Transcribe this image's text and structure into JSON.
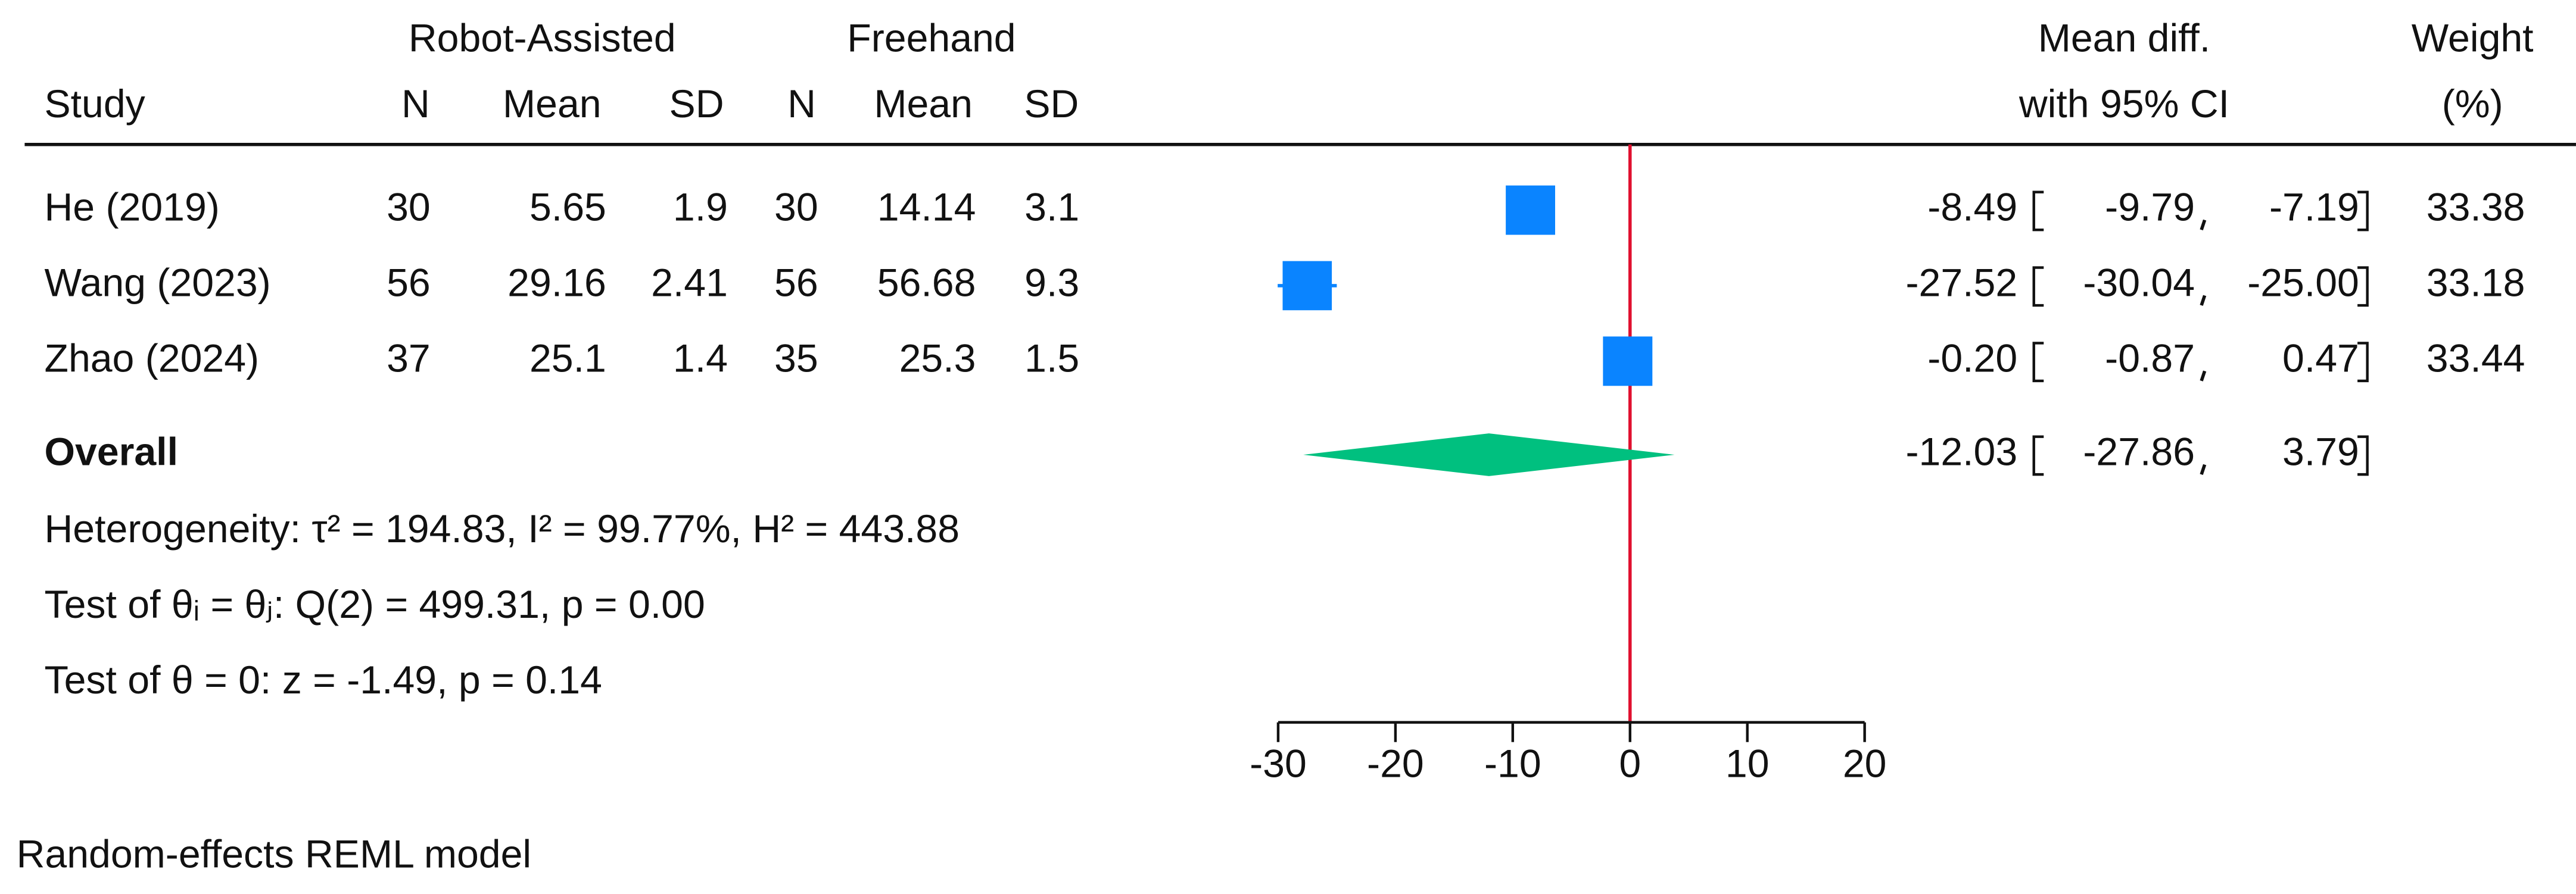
{
  "chart_data": {
    "type": "forest",
    "group_headers": [
      "Robot-Assisted",
      "Freehand"
    ],
    "columns": [
      "Study",
      "N",
      "Mean",
      "SD",
      "N",
      "Mean",
      "SD"
    ],
    "ci_header": [
      "Mean diff.",
      "with 95% CI"
    ],
    "weight_header": [
      "Weight",
      "(%)"
    ],
    "studies": [
      {
        "label": "He (2019)",
        "n1": 30,
        "mean1": 5.65,
        "sd1": 1.9,
        "n2": 30,
        "mean2": 14.14,
        "sd2": 3.1,
        "values": [
          -8.49,
          -9.79,
          -7.19
        ],
        "value_labels": [
          "-8.49",
          "-9.79",
          "-7.19"
        ],
        "weight": 33.38
      },
      {
        "label": "Wang (2023)",
        "n1": 56,
        "mean1": 29.16,
        "sd1": 2.41,
        "n2": 56,
        "mean2": 56.68,
        "sd2": 9.3,
        "values": [
          -27.52,
          -30.04,
          -25.0
        ],
        "value_labels": [
          "-27.52",
          "-30.04",
          "-25.00"
        ],
        "weight": 33.18
      },
      {
        "label": "Zhao (2024)",
        "n1": 37,
        "mean1": 25.1,
        "sd1": 1.4,
        "n2": 35,
        "mean2": 25.3,
        "sd2": 1.5,
        "values": [
          -0.2,
          -0.87,
          0.47
        ],
        "value_labels": [
          "-0.20",
          "-0.87",
          "0.47"
        ],
        "weight": 33.44
      }
    ],
    "overall": {
      "label": "Overall",
      "values": [
        -12.03,
        -27.86,
        3.79
      ],
      "value_labels": [
        "-12.03",
        "-27.86",
        "3.79"
      ]
    },
    "notes": [
      "Heterogeneity: τ² = 194.83, I² = 99.77%, H² = 443.88",
      "Test of θᵢ = θⱼ: Q(2) = 499.31, p = 0.00",
      "Test of θ = 0: z = -1.49, p = 0.14"
    ],
    "footnote": "Random-effects REML model",
    "xlim": [
      -30,
      20
    ],
    "xticks": [
      -30,
      -20,
      -10,
      0,
      10,
      20
    ],
    "null_line": 0,
    "study_color": "#0a84ff",
    "overall_color": "#00c07f",
    "null_line_color": "#e0102f"
  }
}
